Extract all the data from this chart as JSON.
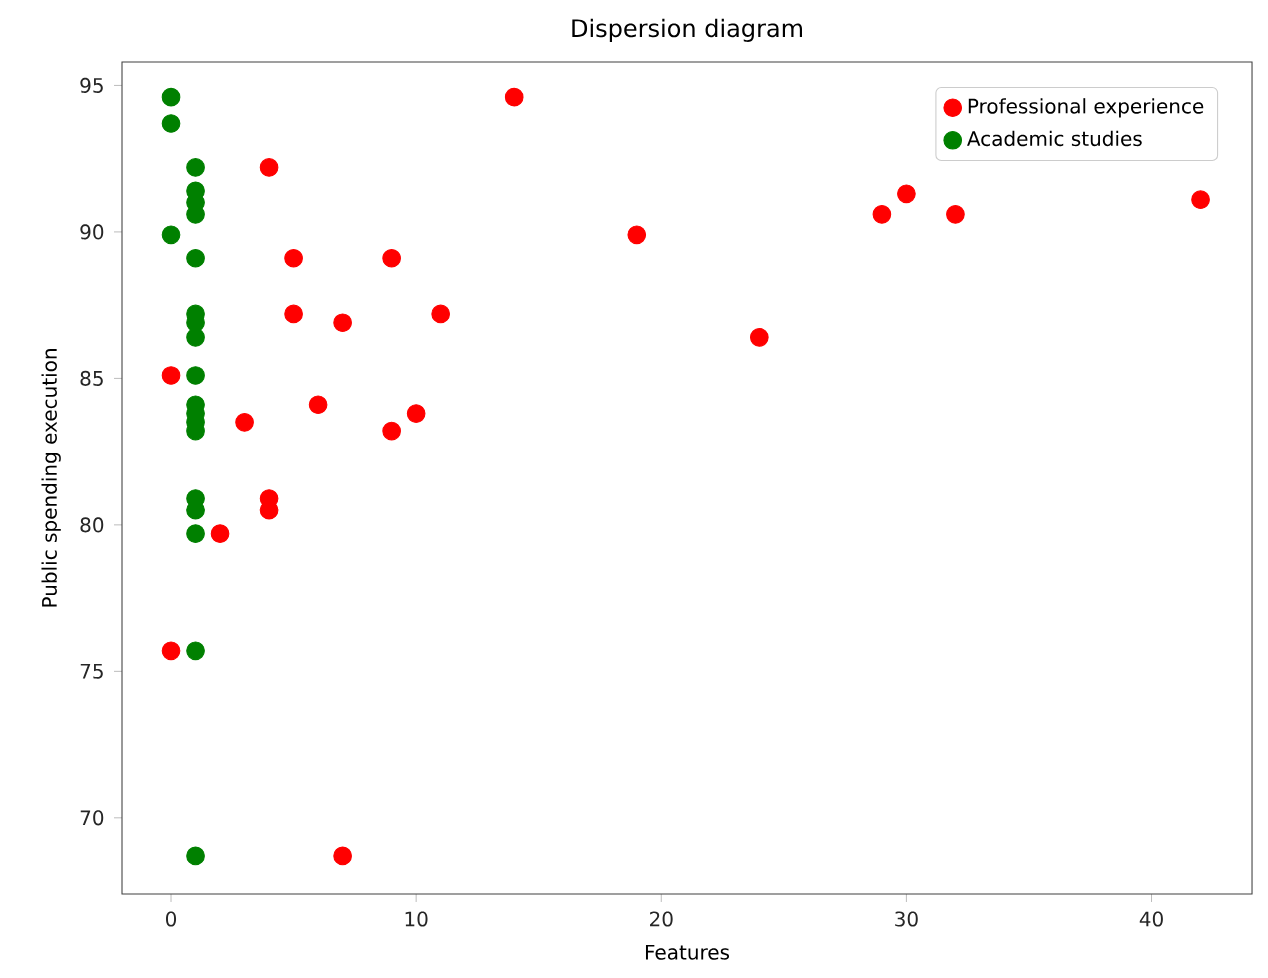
{
  "chart_data": {
    "type": "scatter",
    "title": "Dispersion diagram",
    "xlabel": "Features",
    "ylabel": "Public spending execution",
    "xlim": [
      -2,
      44.1
    ],
    "ylim": [
      67.4,
      95.8
    ],
    "xticks": [
      0,
      10,
      20,
      30,
      40
    ],
    "yticks": [
      70,
      75,
      80,
      85,
      90,
      95
    ],
    "legend": "top right",
    "series": [
      {
        "name": "Professional experience",
        "color": "#ff0000",
        "x": [
          0,
          0,
          2,
          3,
          4,
          4,
          4,
          5,
          5,
          6,
          7,
          7,
          9,
          9,
          10,
          11,
          14,
          19,
          24,
          29,
          30,
          32,
          42
        ],
        "values": [
          85.1,
          75.7,
          79.7,
          83.5,
          92.2,
          80.9,
          80.5,
          89.1,
          87.2,
          84.1,
          86.9,
          68.7,
          89.1,
          83.2,
          83.8,
          87.2,
          94.6,
          89.9,
          86.4,
          90.6,
          91.3,
          90.6,
          91.1
        ]
      },
      {
        "name": "Academic studies",
        "color": "#008000",
        "x": [
          0,
          0,
          0,
          1,
          1,
          1,
          1,
          1,
          1,
          1,
          1,
          1,
          1,
          1,
          1,
          1,
          1,
          1,
          1,
          1,
          1
        ],
        "values": [
          94.6,
          93.7,
          89.9,
          92.2,
          91.4,
          91.0,
          90.6,
          89.1,
          87.2,
          86.9,
          86.4,
          85.1,
          84.1,
          83.8,
          83.5,
          83.2,
          80.9,
          80.5,
          79.7,
          75.7,
          68.7
        ]
      }
    ]
  }
}
